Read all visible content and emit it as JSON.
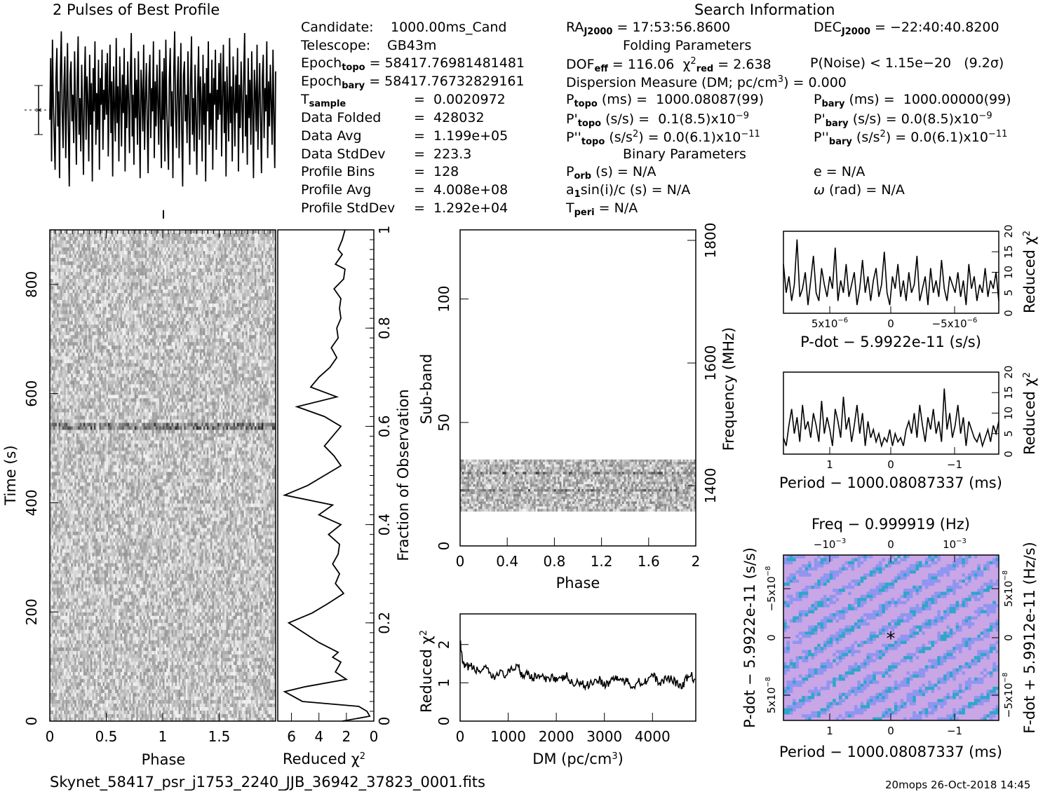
{
  "title_profile": "2 Pulses of Best Profile",
  "title_search": "Search Information",
  "footer_file": "Skynet_58417_psr_j1753_2240_JJB_36942_37823_0001.fits",
  "footer_stamp": "20mops 26-Oct-2018 14:45",
  "info": {
    "candidate_label": "Candidate:",
    "candidate": "1000.00ms_Cand",
    "telescope_label": "Telescope:",
    "telescope": "GB43m",
    "epoch_topo": "58417.76981481481",
    "epoch_bary": "58417.76732829161",
    "t_sample": "0.0020972",
    "data_folded_label": "Data Folded",
    "data_folded": "428032",
    "data_avg_label": "Data Avg",
    "data_avg": "1.199e+05",
    "data_stddev_label": "Data StdDev",
    "data_stddev": "223.3",
    "profile_bins_label": "Profile Bins",
    "profile_bins": "128",
    "profile_avg_label": "Profile Avg",
    "profile_avg": "4.008e+08",
    "profile_stddev_label": "Profile StdDev",
    "profile_stddev": "1.292e+04",
    "ra": "17:53:56.8600",
    "dec": "−22:40:40.8200",
    "folding_title": "Folding Parameters",
    "dof_eff": "116.06",
    "chi2_red": "2.638",
    "p_noise": "P(Noise) < 1.15e−20",
    "sigma": "(9.2σ)",
    "dm_text": "Dispersion Measure (DM; pc/cm",
    "dm_value": "= 0.000",
    "p_topo": "1000.08087(99)",
    "p_bary": "1000.00000(99)",
    "pd_topo": "0.1(8.5)x10",
    "pd_bary": "0.0(8.5)x10",
    "pdd_topo": "0.0(6.1)x10",
    "pdd_bary": "0.0(6.1)x10",
    "binary_title": "Binary Parameters",
    "p_orb": "N/A",
    "asini": "N/A",
    "t_peri": "N/A",
    "e": "N/A",
    "omega": "N/A"
  },
  "colors": {
    "ink": "#000000",
    "ppdot_bg": "#c9a6e6",
    "ppdot_low": "#8f95f0",
    "ppdot_high": "#2fa6c8"
  },
  "chart_data": [
    {
      "name": "profile",
      "type": "line",
      "title": "2 Pulses of Best Profile",
      "x_range": [
        0,
        2
      ],
      "values": [
        0.45,
        0.82,
        0.2,
        0.93,
        0.55,
        0.35,
        0.15,
        0.7,
        0.88,
        0.41,
        0.62,
        0.1,
        0.74,
        0.98,
        0.5,
        0.28,
        0.66,
        0.83,
        0.22,
        0.57,
        0.91,
        0.38,
        0.05,
        0.72,
        0.8,
        0.44,
        0.6,
        0.31,
        0.86,
        0.52,
        0.18,
        0.69,
        0.95,
        0.36,
        0.58,
        0.26,
        0.78,
        0.47,
        0.12,
        0.64,
        0.89,
        0.33,
        0.71,
        0.56,
        0.2,
        0.84,
        0.42,
        0.67,
        0.08,
        0.76,
        0.5,
        0.92,
        0.3,
        0.61,
        0.39,
        0.81,
        0.15,
        0.7,
        0.54,
        0.87,
        0.27,
        0.63,
        0.45,
        0.79,
        0.48,
        0.85,
        0.23,
        0.6,
        0.9,
        0.37,
        0.68,
        0.11,
        0.77,
        0.53,
        0.32,
        0.94,
        0.43,
        0.65,
        0.2,
        0.83,
        0.58,
        0.29,
        0.72,
        0.49,
        0.88,
        0.14,
        0.66,
        0.4,
        0.8,
        0.55,
        0.25,
        0.73,
        0.97,
        0.35,
        0.6,
        0.18,
        0.82,
        0.46,
        0.69,
        0.3,
        0.86,
        0.51,
        0.1,
        0.75,
        0.62,
        0.38,
        0.9,
        0.27,
        0.57,
        0.79,
        0.44,
        0.13,
        0.7,
        0.84,
        0.34,
        0.64,
        0.5,
        0.92,
        0.22,
        0.68,
        0.41,
        0.78,
        0.56,
        0.3,
        0.87,
        0.47,
        0.16,
        0.74
      ],
      "error_bar": "±1σ"
    },
    {
      "name": "time-phase",
      "type": "heatmap",
      "xlabel": "Phase",
      "ylabel": "Time (s)",
      "xticks": [
        "0",
        "0.5",
        "1",
        "1.5"
      ],
      "yticks": [
        "0",
        "200",
        "400",
        "600",
        "800"
      ],
      "xlim": [
        0,
        2
      ],
      "ylim": [
        0,
        900
      ]
    },
    {
      "name": "chi2-vs-time",
      "type": "line",
      "xlabel": "Reduced χ",
      "y2label": "Fraction of Observation",
      "xticks": [
        "6",
        "4",
        "2",
        "0"
      ],
      "yticks": [
        "0",
        "0.2",
        "0.4",
        "0.6",
        "0.8",
        "1"
      ],
      "xlim": [
        7,
        0
      ],
      "ylim": [
        0,
        1
      ],
      "x": [
        2.3,
        0.3,
        0.5,
        1.1,
        5.2,
        6.5,
        5.0,
        2.0,
        2.8,
        2.4,
        3.0,
        2.6,
        4.0,
        6.2,
        4.5,
        3.3,
        2.2,
        2.8,
        2.5,
        3.0,
        2.6,
        2.5,
        3.3,
        2.4,
        4.0,
        3.0,
        6.5,
        4.8,
        3.6,
        2.4,
        2.9,
        3.6,
        3.0,
        2.4,
        3.6,
        5.6,
        2.7,
        4.6,
        4.0,
        3.2,
        2.7,
        3.1,
        2.6,
        2.7,
        2.4,
        2.5,
        2.4,
        2.9,
        2.2,
        2.1,
        2.8,
        2.3,
        2.6,
        2.3,
        2.1
      ],
      "y": [
        0.0,
        0.01,
        0.02,
        0.03,
        0.04,
        0.06,
        0.07,
        0.085,
        0.1,
        0.12,
        0.13,
        0.14,
        0.16,
        0.2,
        0.22,
        0.24,
        0.26,
        0.28,
        0.3,
        0.32,
        0.34,
        0.36,
        0.38,
        0.4,
        0.42,
        0.44,
        0.46,
        0.48,
        0.5,
        0.52,
        0.54,
        0.56,
        0.58,
        0.6,
        0.62,
        0.64,
        0.66,
        0.68,
        0.7,
        0.72,
        0.74,
        0.76,
        0.78,
        0.8,
        0.82,
        0.84,
        0.86,
        0.88,
        0.9,
        0.92,
        0.93,
        0.95,
        0.96,
        0.98,
        1.0
      ]
    },
    {
      "name": "subband-phase",
      "type": "heatmap",
      "xlabel": "Phase",
      "ylabel": "Sub-band",
      "y2label": "Frequency (MHz)",
      "xticks": [
        "0",
        "0.4",
        "0.8",
        "1.2",
        "1.6",
        "2"
      ],
      "yticks": [
        "0",
        "50",
        "100"
      ],
      "y2ticks": [
        "1400",
        "1600",
        "1800"
      ],
      "xlim": [
        0,
        2
      ],
      "ylim": [
        0,
        128
      ],
      "filled_band": [
        14,
        35
      ]
    },
    {
      "name": "chi2-vs-dm",
      "type": "line",
      "xlabel": "DM (pc/cm",
      "ylabel": "Reduced χ",
      "xticks": [
        "0",
        "1000",
        "2000",
        "3000",
        "4000"
      ],
      "yticks": [
        "0",
        "1",
        "2"
      ],
      "xlim": [
        0,
        4900
      ],
      "ylim": [
        0,
        2.8
      ],
      "x": [
        0,
        50,
        100,
        200,
        300,
        400,
        500,
        600,
        700,
        800,
        900,
        1000,
        1100,
        1200,
        1250,
        1300,
        1400,
        1500,
        1600,
        1700,
        1800,
        1900,
        2000,
        2100,
        2200,
        2300,
        2400,
        2500,
        2600,
        2700,
        2800,
        2900,
        3000,
        3100,
        3200,
        3300,
        3400,
        3500,
        3600,
        3700,
        3800,
        3900,
        4000,
        4100,
        4200,
        4300,
        4400,
        4500,
        4600,
        4700,
        4800,
        4900
      ],
      "y": [
        2.1,
        1.5,
        1.4,
        1.45,
        1.35,
        1.3,
        1.4,
        1.25,
        1.1,
        1.3,
        1.2,
        1.25,
        1.35,
        1.5,
        1.3,
        1.2,
        1.3,
        1.1,
        1.2,
        1.15,
        1.05,
        1.2,
        1.1,
        1.05,
        1.2,
        1.0,
        0.95,
        1.05,
        0.9,
        1.0,
        1.05,
        1.1,
        0.95,
        1.0,
        1.15,
        1.1,
        1.05,
        1.0,
        0.9,
        1.05,
        1.0,
        1.1,
        1.2,
        1.05,
        1.0,
        1.15,
        1.1,
        1.0,
        0.85,
        1.1,
        1.2,
        1.05
      ]
    },
    {
      "name": "chi2-vs-pdot",
      "type": "line",
      "xlabel": "P-dot − 5.9922e-11 (s/s)",
      "y2label": "Reduced χ",
      "xticks": [
        "5x10",
        "0",
        "−5x10"
      ],
      "yticks": [
        "0",
        "5",
        "10",
        "15",
        "20"
      ],
      "ylim": [
        0,
        20
      ],
      "values": [
        12,
        5,
        9,
        3,
        7,
        18,
        4,
        6,
        10,
        2,
        8,
        14,
        5,
        3,
        11,
        7,
        4,
        9,
        6,
        16,
        3,
        8,
        5,
        12,
        4,
        7,
        10,
        2,
        6,
        13,
        5,
        9,
        3,
        8,
        11,
        4,
        7,
        15,
        5,
        2,
        9,
        6,
        12,
        4,
        8,
        3,
        10,
        5,
        7,
        14,
        3,
        6,
        9,
        2,
        11,
        5,
        8,
        4,
        13,
        6,
        3,
        9,
        7,
        5,
        10,
        4,
        8,
        2,
        12,
        6,
        9,
        3,
        7,
        5,
        11,
        4,
        8,
        6,
        10,
        3
      ]
    },
    {
      "name": "chi2-vs-period",
      "type": "line",
      "xlabel": "Period − 1000.08087337 (ms)",
      "y2label": "Reduced χ",
      "xticks": [
        "1",
        "0",
        "−1"
      ],
      "yticks": [
        "0",
        "5",
        "10",
        "15",
        "20"
      ],
      "ylim": [
        0,
        20
      ],
      "values": [
        4,
        2,
        7,
        11,
        5,
        9,
        3,
        12,
        6,
        8,
        4,
        10,
        7,
        3,
        13,
        5,
        9,
        6,
        2,
        11,
        8,
        4,
        14,
        6,
        9,
        3,
        7,
        12,
        5,
        10,
        2,
        8,
        4,
        6,
        3,
        5,
        2,
        4,
        3,
        6,
        2,
        5,
        3,
        4,
        2,
        6,
        8,
        5,
        10,
        4,
        12,
        7,
        3,
        9,
        6,
        11,
        5,
        8,
        3,
        16,
        6,
        10,
        4,
        7,
        12,
        5,
        9,
        2,
        8,
        6,
        4,
        3,
        5,
        2,
        4,
        6,
        3,
        7,
        5,
        8
      ]
    },
    {
      "name": "ppdot",
      "type": "heatmap",
      "xlabel": "Period − 1000.08087337 (ms)",
      "ylabel": "P-dot − 5.9922e-11 (s/s)",
      "x2label": "Freq − 0.999919 (Hz)",
      "y2label": "F-dot + 5.9912e-11 (Hz/s)",
      "xticks": [
        "1",
        "0",
        "−1"
      ],
      "yticks": [
        "5x10",
        "0",
        "−5x10"
      ],
      "x2ticks": [
        "−10",
        "0",
        "10"
      ],
      "y2ticks": [
        "5x10",
        "0",
        "−5x10"
      ]
    }
  ]
}
